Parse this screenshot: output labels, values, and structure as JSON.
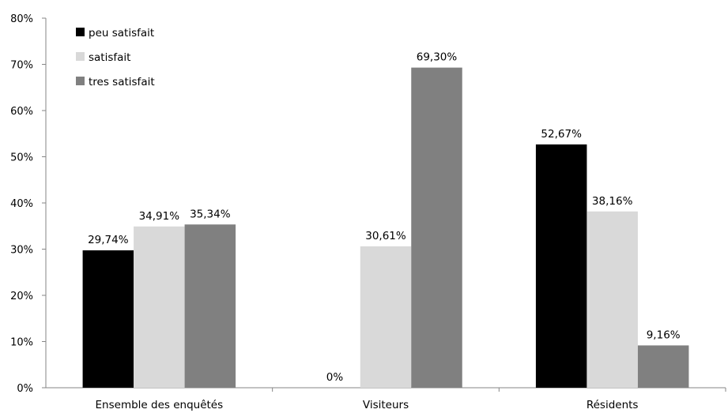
{
  "chart_data": {
    "type": "bar",
    "title": "",
    "xlabel": "",
    "ylabel": "",
    "ylim": [
      0,
      80
    ],
    "y_ticks": [
      "0%",
      "10%",
      "20%",
      "30%",
      "40%",
      "50%",
      "60%",
      "70%",
      "80%"
    ],
    "categories": [
      "Ensemble des enquêtés",
      "Visiteurs",
      "Résidents"
    ],
    "series": [
      {
        "name": "peu satisfait",
        "color": "#000000",
        "values": [
          29.74,
          0,
          52.67
        ],
        "labels": [
          "29,74%",
          "0%",
          "52,67%"
        ]
      },
      {
        "name": "satisfait",
        "color": "#d9d9d9",
        "values": [
          34.91,
          30.61,
          38.16
        ],
        "labels": [
          "34,91%",
          "30,61%",
          "38,16%"
        ]
      },
      {
        "name": "tres satisfait",
        "color": "#808080",
        "values": [
          35.34,
          69.3,
          9.16
        ],
        "labels": [
          "35,34%",
          "69,30%",
          "9,16%"
        ]
      }
    ],
    "legend_position": "top-left",
    "grid": false
  }
}
